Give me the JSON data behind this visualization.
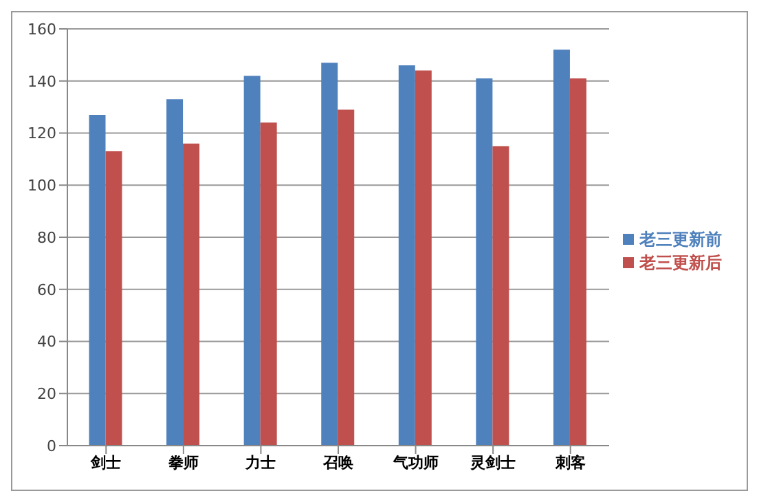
{
  "chart_data": {
    "type": "bar",
    "categories": [
      "剑士",
      "拳师",
      "力士",
      "召唤",
      "气功师",
      "灵剑士",
      "刺客"
    ],
    "series": [
      {
        "name": "老三更新前",
        "color": "#4f81bd",
        "values": [
          127,
          133,
          142,
          147,
          146,
          141,
          152
        ]
      },
      {
        "name": "老三更新后",
        "color": "#c0504d",
        "values": [
          113,
          116,
          124,
          129,
          144,
          115,
          141
        ]
      }
    ],
    "ylim": [
      0,
      160
    ],
    "yticks": [
      0,
      20,
      40,
      60,
      80,
      100,
      120,
      140,
      160
    ],
    "grid": "y",
    "legend": "right"
  }
}
